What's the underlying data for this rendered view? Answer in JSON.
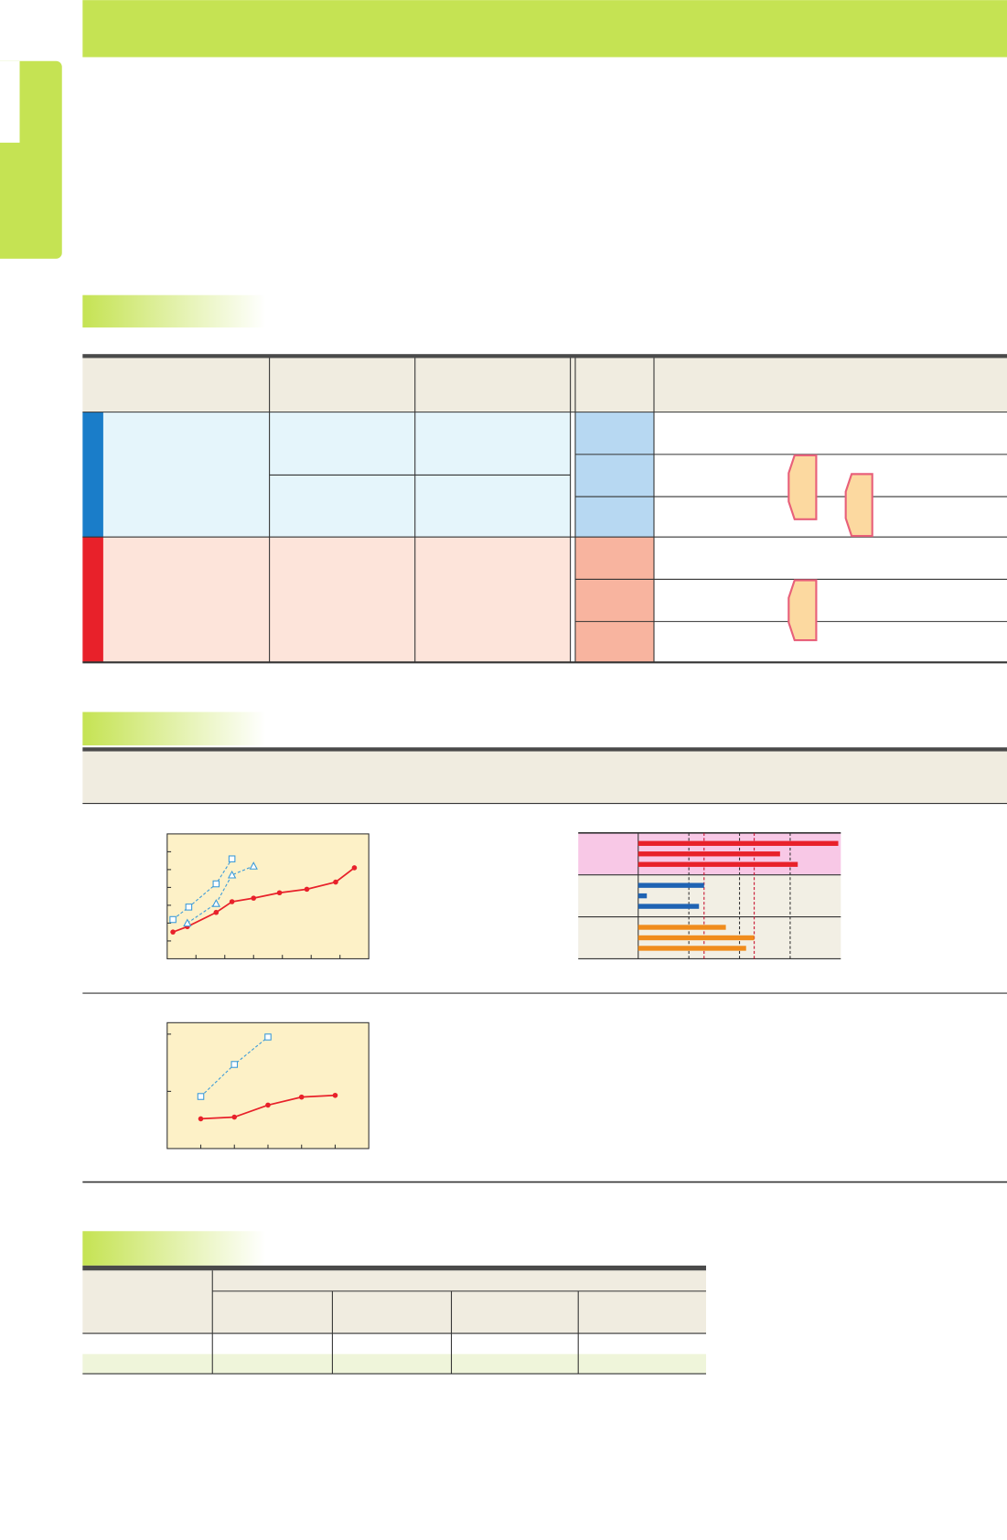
{
  "chart_data": [
    {
      "type": "line",
      "background": "#fdf1c7",
      "xlim": [
        0,
        7
      ],
      "ylim": [
        0,
        7
      ],
      "xticks": [
        1,
        2,
        3,
        4,
        5,
        6
      ],
      "yticks": [
        1,
        2,
        3,
        4,
        5,
        6
      ],
      "series": [
        {
          "color": "#e8212a",
          "marker": "circle",
          "dashed": false,
          "x": [
            0.2,
            0.7,
            1.7,
            2.25,
            3,
            3.9,
            4.85,
            5.85,
            6.5
          ],
          "values": [
            1.5,
            1.8,
            2.6,
            3.2,
            3.4,
            3.7,
            3.9,
            4.3,
            5.1
          ]
        },
        {
          "color": "#3a9ad9",
          "marker": "square",
          "dashed": true,
          "x": [
            0.2,
            0.75,
            1.7,
            2.25
          ],
          "values": [
            2.2,
            2.9,
            4.2,
            5.6
          ]
        },
        {
          "color": "#3a9ad9",
          "marker": "triangle",
          "dashed": true,
          "x": [
            0.7,
            1.7,
            2.25,
            3
          ],
          "values": [
            2.0,
            3.1,
            4.7,
            5.2
          ]
        }
      ]
    },
    {
      "type": "bar",
      "orientation": "horizontal",
      "xlim": [
        0,
        4
      ],
      "xticks": [
        1,
        2,
        3
      ],
      "group_colors": [
        "#f8c8e6",
        "#f2efe4",
        "#f2efe4"
      ],
      "series": [
        {
          "color": "#e8212a",
          "values": [
            3.95,
            2.8,
            3.15
          ]
        },
        {
          "color": "#1f63b3",
          "values": [
            1.3,
            0.17,
            1.2
          ]
        },
        {
          "color": "#f08c1c",
          "values": [
            1.73,
            2.29,
            2.13
          ]
        }
      ],
      "reference_lines": {
        "color": "#c8102e",
        "values": [
          1.3,
          2.29
        ]
      }
    },
    {
      "type": "line",
      "background": "#fdf1c7",
      "xlim": [
        0,
        6
      ],
      "ylim": [
        0,
        2.2
      ],
      "xticks": [
        1,
        2,
        3,
        4,
        5
      ],
      "yticks": [
        1,
        2
      ],
      "series": [
        {
          "color": "#e8212a",
          "marker": "circle",
          "dashed": false,
          "x": [
            1,
            2,
            3,
            4,
            5
          ],
          "values": [
            0.52,
            0.55,
            0.76,
            0.9,
            0.93
          ]
        },
        {
          "color": "#3a9ad9",
          "marker": "square",
          "dashed": true,
          "x": [
            1,
            2,
            3
          ],
          "values": [
            0.91,
            1.47,
            1.95
          ]
        }
      ]
    }
  ]
}
